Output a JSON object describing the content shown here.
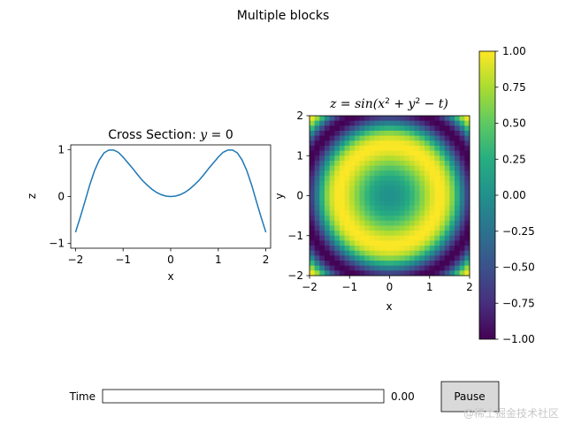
{
  "figure_title": "Multiple blocks",
  "chart_data": [
    {
      "type": "line",
      "title_prefix": "Cross Section: ",
      "title_var": "y",
      "title_suffix": " = 0",
      "xlabel": "x",
      "ylabel": "z",
      "xlim": [
        -2.1,
        2.1
      ],
      "ylim": [
        -1.1,
        1.1
      ],
      "xticks": [
        -2,
        -1,
        0,
        1,
        2
      ],
      "xtick_labels": [
        "−2",
        "−1",
        "0",
        "1",
        "2"
      ],
      "yticks": [
        -1,
        0,
        1
      ],
      "ytick_labels": [
        "−1",
        "0",
        "1"
      ],
      "line_color": "#1f77b4",
      "series": [
        {
          "x": [
            -2.0,
            -1.9,
            -1.8,
            -1.7,
            -1.6,
            -1.5,
            -1.4,
            -1.3,
            -1.2,
            -1.1,
            -1.0,
            -0.9,
            -0.8,
            -0.7,
            -0.6,
            -0.5,
            -0.4,
            -0.3,
            -0.2,
            -0.1,
            0.0,
            0.1,
            0.2,
            0.3,
            0.4,
            0.5,
            0.6,
            0.7,
            0.8,
            0.9,
            1.0,
            1.1,
            1.2,
            1.3,
            1.4,
            1.5,
            1.6,
            1.7,
            1.8,
            1.9,
            2.0
          ],
          "y": [
            -0.76,
            -0.44,
            -0.1,
            0.25,
            0.55,
            0.78,
            0.93,
            0.99,
            0.99,
            0.94,
            0.84,
            0.72,
            0.6,
            0.47,
            0.35,
            0.25,
            0.16,
            0.09,
            0.04,
            0.01,
            0.0,
            0.01,
            0.04,
            0.09,
            0.16,
            0.25,
            0.35,
            0.47,
            0.6,
            0.72,
            0.84,
            0.94,
            0.99,
            0.99,
            0.93,
            0.78,
            0.55,
            0.25,
            -0.1,
            -0.44,
            -0.76
          ]
        }
      ]
    },
    {
      "type": "heatmap",
      "title_prefix": "z = sin(x",
      "title_mid": " + y",
      "title_suffix": " − t)",
      "xlabel": "x",
      "ylabel": "y",
      "xlim": [
        -2,
        2
      ],
      "ylim": [
        -2,
        2
      ],
      "t": 0.0,
      "grid_size": 32,
      "xticks": [
        -2,
        -1,
        0,
        1,
        2
      ],
      "xtick_labels": [
        "−2",
        "−1",
        "0",
        "1",
        "2"
      ],
      "yticks": [
        -2,
        -1,
        0,
        1,
        2
      ],
      "ytick_labels": [
        "−2",
        "−1",
        "0",
        "1",
        "2"
      ],
      "colormap": "viridis",
      "colorbar": {
        "vmin": -1.0,
        "vmax": 1.0,
        "ticks": [
          1.0,
          0.75,
          0.5,
          0.25,
          0.0,
          -0.25,
          -0.5,
          -0.75,
          -1.0
        ],
        "tick_labels": [
          "1.00",
          "0.75",
          "0.50",
          "0.25",
          "0.00",
          "−0.25",
          "−0.50",
          "−0.75",
          "−1.00"
        ]
      }
    }
  ],
  "controls": {
    "slider_label": "Time",
    "slider_value": "0.00",
    "slider_fraction": 0.0,
    "pause_label": "Pause"
  },
  "watermark": "@稀土掘金技术社区"
}
